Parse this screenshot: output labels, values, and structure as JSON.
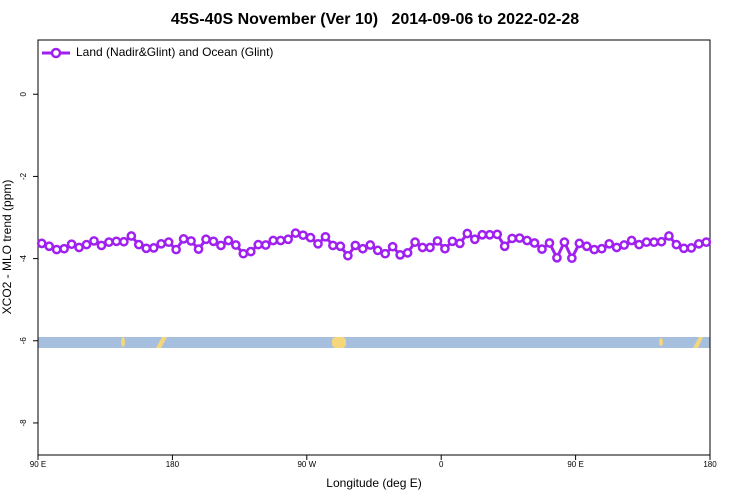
{
  "chart_data": {
    "type": "line",
    "title": "45S-40S November (Ver 10)   2014-09-06 to 2022-02-28",
    "xlabel": "Longitude (deg E)",
    "ylabel": "XCO2 - MLO trend (ppm)",
    "x": [
      92.5,
      97.5,
      102.5,
      107.5,
      112.5,
      117.5,
      122.5,
      127.5,
      132.5,
      137.5,
      142.5,
      147.5,
      152.5,
      157.5,
      162.5,
      167.5,
      172.5,
      177.5,
      182.5,
      187.5,
      192.5,
      197.5,
      202.5,
      207.5,
      212.5,
      217.5,
      222.5,
      227.5,
      232.5,
      237.5,
      242.5,
      247.5,
      252.5,
      257.5,
      262.5,
      267.5,
      272.5,
      277.5,
      282.5,
      287.5,
      292.5,
      297.5,
      302.5,
      307.5,
      312.5,
      317.5,
      322.5,
      327.5,
      332.5,
      337.5,
      342.5,
      347.5,
      352.5,
      357.5,
      362.5,
      367.5,
      372.5,
      377.5,
      382.5,
      387.5,
      392.5,
      397.5,
      402.5,
      407.5,
      412.5,
      417.5,
      422.5,
      427.5,
      432.5,
      437.5,
      442.5,
      447.5,
      452.5,
      457.5,
      462.5,
      467.5,
      472.5,
      477.5,
      482.5,
      487.5,
      492.5,
      497.5,
      502.5,
      507.5,
      512.5,
      517.5,
      522.5,
      527.5,
      532.5,
      537.5
    ],
    "series": [
      {
        "name": "Land (Nadir&Glint) and Ocean (Glint)",
        "color": "#a020f0",
        "values": [
          -3.63,
          -3.7,
          -3.78,
          -3.76,
          -3.65,
          -3.73,
          -3.66,
          -3.57,
          -3.68,
          -3.6,
          -3.58,
          -3.59,
          -3.45,
          -3.66,
          -3.75,
          -3.74,
          -3.64,
          -3.6,
          -3.78,
          -3.52,
          -3.57,
          -3.77,
          -3.53,
          -3.58,
          -3.68,
          -3.56,
          -3.67,
          -3.88,
          -3.83,
          -3.66,
          -3.67,
          -3.56,
          -3.56,
          -3.53,
          -3.38,
          -3.43,
          -3.49,
          -3.64,
          -3.47,
          -3.68,
          -3.7,
          -3.93,
          -3.68,
          -3.76,
          -3.67,
          -3.8,
          -3.88,
          -3.71,
          -3.91,
          -3.86,
          -3.6,
          -3.73,
          -3.73,
          -3.57,
          -3.76,
          -3.58,
          -3.63,
          -3.39,
          -3.53,
          -3.42,
          -3.42,
          -3.41,
          -3.7,
          -3.51,
          -3.5,
          -3.56,
          -3.62,
          -3.77,
          -3.62,
          -3.98,
          -3.6,
          -3.99,
          -3.63,
          -3.7,
          -3.78,
          -3.76,
          -3.64,
          -3.73,
          -3.67,
          -3.56,
          -3.66,
          -3.6,
          -3.6,
          -3.59,
          -3.45,
          -3.66,
          -3.75,
          -3.74,
          -3.64,
          -3.6
        ]
      }
    ],
    "xlim": [
      90,
      540
    ],
    "xticks": [
      {
        "value": 90,
        "label": "90 E"
      },
      180,
      {
        "value": 270,
        "label": "90 W"
      },
      {
        "value": 360,
        "label": "0"
      },
      {
        "value": 450,
        "label": "90 E"
      },
      {
        "value": 540,
        "label": "180"
      }
    ],
    "ylim": [
      -8.78,
      1.32
    ],
    "yticks": [
      0,
      -2,
      -4,
      -6,
      -8
    ],
    "legend": "top-left"
  }
}
